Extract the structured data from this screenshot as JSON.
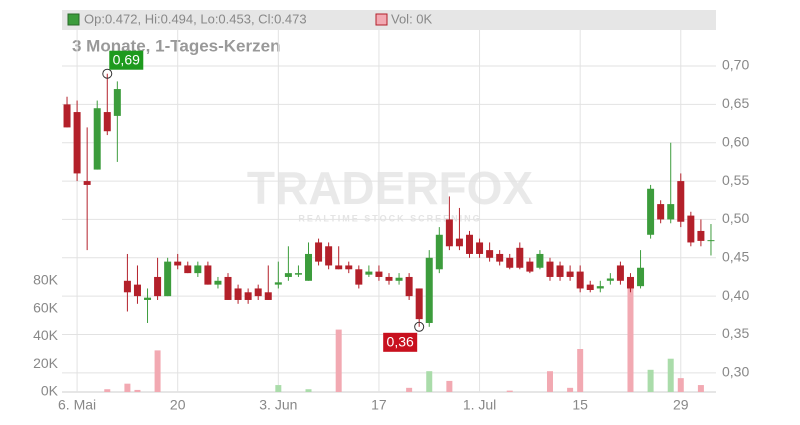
{
  "chart_data": {
    "type": "candlestick",
    "header": {
      "ohlc": "Op:0.472, Hi:0.494, Lo:0.453, Cl:0.473",
      "volume": "Vol: 0K"
    },
    "subtitle": "3 Monate, 1-Tages-Kerzen",
    "watermark": {
      "brand": "TRADERFOX",
      "tagline": "REALTIME STOCK SCREENING"
    },
    "categories": [
      null,
      "6. Mai",
      null,
      null,
      null,
      null,
      null,
      null,
      null,
      null,
      null,
      "20",
      null,
      null,
      null,
      null,
      null,
      null,
      null,
      null,
      null,
      "3. Jun",
      null,
      null,
      null,
      null,
      null,
      null,
      null,
      null,
      null,
      "17",
      null,
      null,
      null,
      null,
      null,
      null,
      null,
      null,
      null,
      "1. Jul",
      null,
      null,
      null,
      null,
      null,
      null,
      null,
      null,
      null,
      "15",
      null,
      null,
      null,
      null,
      null,
      null,
      null,
      null,
      null,
      "29",
      null,
      null,
      null
    ],
    "open": [
      0.65,
      0.64,
      0.55,
      0.565,
      0.64,
      0.635,
      0.42,
      0.415,
      0.395,
      0.425,
      0.4,
      0.445,
      0.44,
      0.43,
      0.44,
      0.415,
      0.425,
      0.41,
      0.405,
      0.41,
      0.405,
      0.415,
      0.425,
      0.428,
      0.42,
      0.47,
      0.465,
      0.44,
      0.44,
      0.435,
      0.428,
      0.432,
      0.425,
      0.42,
      0.425,
      0.41,
      0.365,
      0.435,
      0.5,
      0.475,
      0.48,
      0.47,
      0.46,
      0.455,
      0.45,
      0.463,
      0.445,
      0.437,
      0.445,
      0.44,
      0.432,
      0.432,
      0.415,
      0.41,
      0.42,
      0.44,
      0.425,
      0.413,
      0.48,
      0.52,
      0.5,
      0.55,
      0.505,
      0.485,
      0.472
    ],
    "high": [
      0.66,
      0.655,
      0.62,
      0.655,
      0.69,
      0.68,
      0.455,
      0.44,
      0.41,
      0.45,
      0.45,
      0.455,
      0.445,
      0.445,
      0.445,
      0.425,
      0.43,
      0.415,
      0.41,
      0.415,
      0.44,
      0.445,
      0.465,
      0.44,
      0.47,
      0.475,
      0.47,
      0.465,
      0.445,
      0.44,
      0.44,
      0.44,
      0.43,
      0.43,
      0.43,
      0.41,
      0.46,
      0.49,
      0.53,
      0.515,
      0.485,
      0.475,
      0.47,
      0.46,
      0.455,
      0.47,
      0.45,
      0.46,
      0.45,
      0.445,
      0.44,
      0.44,
      0.42,
      0.42,
      0.43,
      0.445,
      0.43,
      0.46,
      0.545,
      0.525,
      0.6,
      0.56,
      0.51,
      0.5,
      0.494
    ],
    "low": [
      0.62,
      0.55,
      0.46,
      0.565,
      0.61,
      0.575,
      0.38,
      0.39,
      0.365,
      0.395,
      0.4,
      0.435,
      0.43,
      0.425,
      0.415,
      0.41,
      0.395,
      0.39,
      0.39,
      0.395,
      0.395,
      0.41,
      0.42,
      0.425,
      0.42,
      0.44,
      0.435,
      0.435,
      0.43,
      0.41,
      0.425,
      0.42,
      0.415,
      0.415,
      0.395,
      0.36,
      0.36,
      0.43,
      0.46,
      0.46,
      0.45,
      0.45,
      0.445,
      0.44,
      0.435,
      0.435,
      0.43,
      0.435,
      0.42,
      0.42,
      0.42,
      0.405,
      0.405,
      0.405,
      0.415,
      0.415,
      0.405,
      0.41,
      0.475,
      0.495,
      0.495,
      0.49,
      0.465,
      0.465,
      0.453
    ],
    "close": [
      0.62,
      0.56,
      0.545,
      0.645,
      0.615,
      0.67,
      0.405,
      0.4,
      0.398,
      0.4,
      0.445,
      0.44,
      0.43,
      0.44,
      0.415,
      0.42,
      0.395,
      0.395,
      0.395,
      0.4,
      0.395,
      0.418,
      0.43,
      0.43,
      0.455,
      0.445,
      0.44,
      0.435,
      0.435,
      0.415,
      0.432,
      0.425,
      0.42,
      0.424,
      0.4,
      0.37,
      0.45,
      0.48,
      0.465,
      0.465,
      0.455,
      0.455,
      0.45,
      0.445,
      0.437,
      0.437,
      0.432,
      0.455,
      0.425,
      0.425,
      0.425,
      0.41,
      0.408,
      0.413,
      0.423,
      0.42,
      0.41,
      0.437,
      0.54,
      0.5,
      0.52,
      0.497,
      0.47,
      0.472,
      0.473
    ],
    "volume": [
      0,
      0,
      0,
      0,
      2000,
      0,
      6000,
      1500,
      0,
      30000,
      0,
      0,
      0,
      0,
      0,
      0,
      0,
      0,
      0,
      0,
      0,
      5000,
      0,
      0,
      2000,
      0,
      0,
      45000,
      0,
      0,
      0,
      0,
      0,
      0,
      3000,
      0,
      15000,
      0,
      8000,
      0,
      0,
      0,
      0,
      0,
      1000,
      0,
      0,
      0,
      15000,
      0,
      3000,
      31000,
      0,
      0,
      0,
      0,
      78000,
      0,
      16000,
      0,
      24000,
      10000,
      0,
      5000,
      0
    ],
    "up_color": "#3c9c3c",
    "down_color": "#b3202a",
    "volume_up_color": "#aadcaa",
    "volume_down_color": "#f2a9b2",
    "annotations": [
      {
        "of": "high",
        "value": 0.69,
        "label": "0,69"
      },
      {
        "of": "low",
        "value": 0.36,
        "label": "0,36"
      }
    ],
    "ylim": [
      0.275,
      0.747
    ],
    "yticks": [
      {
        "value": 0.3,
        "label": "0,30"
      },
      {
        "value": 0.35,
        "label": "0,35"
      },
      {
        "value": 0.4,
        "label": "0,40"
      },
      {
        "value": 0.45,
        "label": "0,45"
      },
      {
        "value": 0.5,
        "label": "0,50"
      },
      {
        "value": 0.55,
        "label": "0,55"
      },
      {
        "value": 0.6,
        "label": "0,60"
      },
      {
        "value": 0.65,
        "label": "0,65"
      },
      {
        "value": 0.7,
        "label": "0,70"
      }
    ],
    "y2lim": [
      0,
      261000
    ],
    "y2ticks": [
      {
        "value": 0,
        "label": "0K"
      },
      {
        "value": 20000,
        "label": "20K"
      },
      {
        "value": 40000,
        "label": "40K"
      },
      {
        "value": 60000,
        "label": "60K"
      },
      {
        "value": 80000,
        "label": "80K"
      }
    ],
    "grid": true
  }
}
